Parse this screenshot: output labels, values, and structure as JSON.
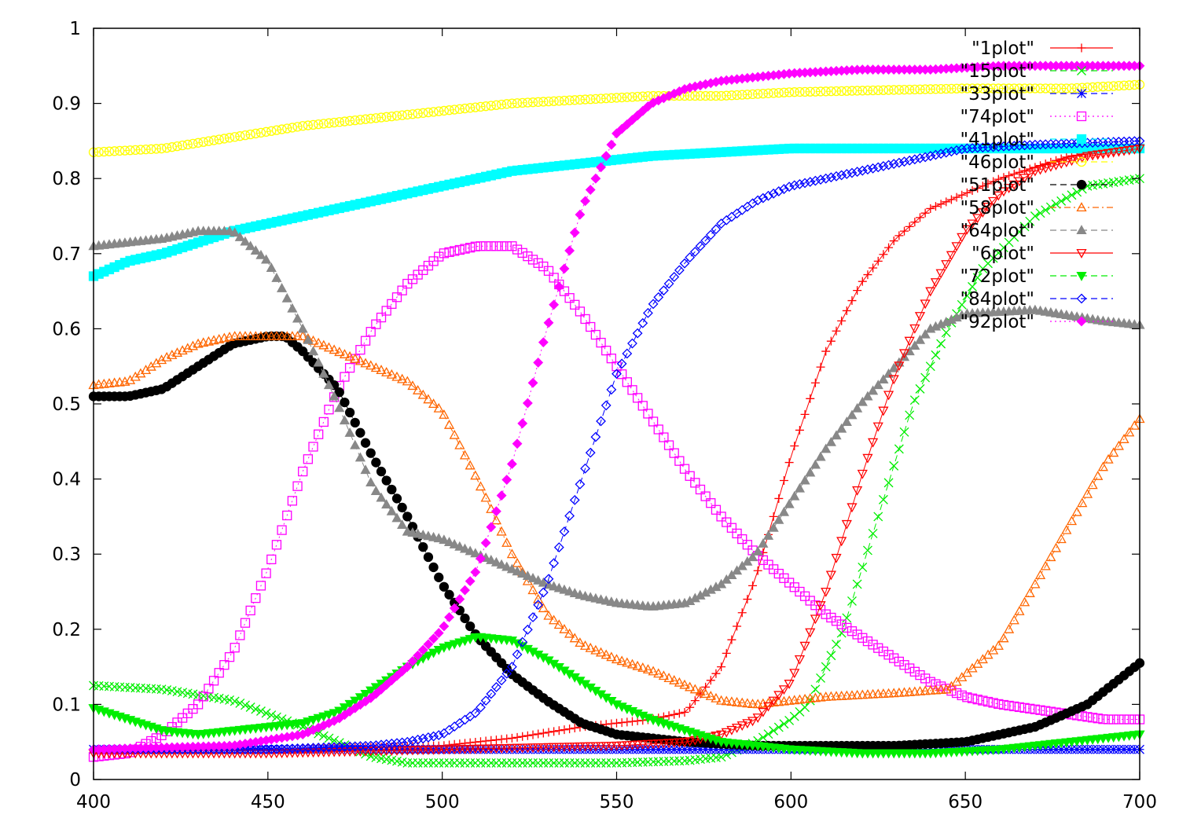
{
  "chart_data": {
    "type": "line",
    "title": "",
    "xlabel": "",
    "ylabel": "",
    "xlim": [
      400,
      700
    ],
    "ylim": [
      0,
      1
    ],
    "x_ticks": [
      400,
      450,
      500,
      550,
      600,
      650,
      700
    ],
    "x_tick_labels": [
      "400",
      "450",
      "500",
      "550",
      "600",
      "650",
      "700"
    ],
    "y_ticks": [
      0,
      0.1,
      0.2,
      0.3,
      0.4,
      0.5,
      0.6,
      0.7,
      0.8,
      0.9,
      1
    ],
    "y_tick_labels": [
      "0",
      "0.1",
      "0.2",
      "0.3",
      "0.4",
      "0.5",
      "0.6",
      "0.7",
      "0.8",
      "0.9",
      "1"
    ],
    "grid": false,
    "legend_position": "top-right",
    "x_step": 1.5,
    "series": [
      {
        "name": "\"1plot\"",
        "color": "#ff0000",
        "marker": "plus",
        "dash": "solid",
        "points": [
          [
            400,
            0.04
          ],
          [
            450,
            0.04
          ],
          [
            500,
            0.045
          ],
          [
            520,
            0.055
          ],
          [
            540,
            0.07
          ],
          [
            560,
            0.08
          ],
          [
            570,
            0.09
          ],
          [
            580,
            0.15
          ],
          [
            590,
            0.27
          ],
          [
            600,
            0.43
          ],
          [
            610,
            0.57
          ],
          [
            620,
            0.66
          ],
          [
            630,
            0.72
          ],
          [
            640,
            0.76
          ],
          [
            660,
            0.8
          ],
          [
            680,
            0.83
          ],
          [
            700,
            0.84
          ]
        ]
      },
      {
        "name": "\"15plot\"",
        "color": "#00ee00",
        "marker": "x",
        "dash": "dash",
        "points": [
          [
            400,
            0.125
          ],
          [
            420,
            0.12
          ],
          [
            440,
            0.105
          ],
          [
            460,
            0.07
          ],
          [
            470,
            0.05
          ],
          [
            480,
            0.03
          ],
          [
            490,
            0.022
          ],
          [
            550,
            0.022
          ],
          [
            570,
            0.025
          ],
          [
            580,
            0.03
          ],
          [
            590,
            0.05
          ],
          [
            600,
            0.08
          ],
          [
            605,
            0.1
          ],
          [
            615,
            0.2
          ],
          [
            625,
            0.35
          ],
          [
            635,
            0.5
          ],
          [
            645,
            0.6
          ],
          [
            655,
            0.68
          ],
          [
            670,
            0.75
          ],
          [
            685,
            0.79
          ],
          [
            700,
            0.8
          ]
        ]
      },
      {
        "name": "\"33plot\"",
        "color": "#0000ff",
        "marker": "star",
        "dash": "dash",
        "points": [
          [
            400,
            0.04
          ],
          [
            700,
            0.04
          ]
        ]
      },
      {
        "name": "\"74plot\"",
        "color": "#ff00ff",
        "marker": "square",
        "dash": "dot",
        "points": [
          [
            400,
            0.03
          ],
          [
            410,
            0.035
          ],
          [
            420,
            0.06
          ],
          [
            430,
            0.1
          ],
          [
            440,
            0.17
          ],
          [
            450,
            0.28
          ],
          [
            460,
            0.41
          ],
          [
            470,
            0.52
          ],
          [
            480,
            0.6
          ],
          [
            490,
            0.66
          ],
          [
            500,
            0.7
          ],
          [
            510,
            0.71
          ],
          [
            520,
            0.71
          ],
          [
            530,
            0.68
          ],
          [
            540,
            0.62
          ],
          [
            550,
            0.55
          ],
          [
            560,
            0.48
          ],
          [
            570,
            0.41
          ],
          [
            580,
            0.35
          ],
          [
            590,
            0.3
          ],
          [
            600,
            0.26
          ],
          [
            610,
            0.22
          ],
          [
            620,
            0.19
          ],
          [
            630,
            0.16
          ],
          [
            640,
            0.13
          ],
          [
            650,
            0.11
          ],
          [
            660,
            0.1
          ],
          [
            675,
            0.09
          ],
          [
            690,
            0.08
          ],
          [
            700,
            0.08
          ]
        ]
      },
      {
        "name": "\"41plot\"",
        "color": "#00ffff",
        "marker": "filled-square",
        "dash": "dash",
        "points": [
          [
            400,
            0.67
          ],
          [
            410,
            0.69
          ],
          [
            420,
            0.7
          ],
          [
            440,
            0.73
          ],
          [
            460,
            0.75
          ],
          [
            480,
            0.77
          ],
          [
            500,
            0.79
          ],
          [
            520,
            0.81
          ],
          [
            540,
            0.82
          ],
          [
            560,
            0.83
          ],
          [
            580,
            0.835
          ],
          [
            600,
            0.84
          ],
          [
            650,
            0.84
          ],
          [
            700,
            0.84
          ]
        ]
      },
      {
        "name": "\"46plot\"",
        "color": "#ffff00",
        "marker": "circle",
        "dash": "dash",
        "points": [
          [
            400,
            0.835
          ],
          [
            420,
            0.84
          ],
          [
            440,
            0.855
          ],
          [
            460,
            0.87
          ],
          [
            480,
            0.88
          ],
          [
            500,
            0.89
          ],
          [
            520,
            0.9
          ],
          [
            540,
            0.905
          ],
          [
            560,
            0.91
          ],
          [
            580,
            0.91
          ],
          [
            600,
            0.915
          ],
          [
            620,
            0.917
          ],
          [
            650,
            0.92
          ],
          [
            680,
            0.92
          ],
          [
            700,
            0.925
          ]
        ]
      },
      {
        "name": "\"51plot\"",
        "color": "#000000",
        "marker": "filled-circle",
        "dash": "dash",
        "points": [
          [
            400,
            0.51
          ],
          [
            410,
            0.51
          ],
          [
            420,
            0.52
          ],
          [
            430,
            0.55
          ],
          [
            440,
            0.58
          ],
          [
            450,
            0.59
          ],
          [
            455,
            0.59
          ],
          [
            460,
            0.57
          ],
          [
            470,
            0.52
          ],
          [
            480,
            0.43
          ],
          [
            490,
            0.35
          ],
          [
            500,
            0.26
          ],
          [
            510,
            0.19
          ],
          [
            520,
            0.14
          ],
          [
            530,
            0.105
          ],
          [
            540,
            0.075
          ],
          [
            550,
            0.06
          ],
          [
            570,
            0.05
          ],
          [
            590,
            0.045
          ],
          [
            610,
            0.045
          ],
          [
            630,
            0.045
          ],
          [
            650,
            0.05
          ],
          [
            670,
            0.07
          ],
          [
            685,
            0.1
          ],
          [
            700,
            0.155
          ]
        ]
      },
      {
        "name": "\"58plot\"",
        "color": "#ff6600",
        "marker": "triangle",
        "dash": "dashdot",
        "points": [
          [
            400,
            0.525
          ],
          [
            410,
            0.53
          ],
          [
            420,
            0.56
          ],
          [
            430,
            0.58
          ],
          [
            440,
            0.59
          ],
          [
            450,
            0.59
          ],
          [
            460,
            0.59
          ],
          [
            470,
            0.57
          ],
          [
            480,
            0.55
          ],
          [
            490,
            0.53
          ],
          [
            500,
            0.49
          ],
          [
            510,
            0.4
          ],
          [
            520,
            0.3
          ],
          [
            530,
            0.22
          ],
          [
            540,
            0.18
          ],
          [
            550,
            0.16
          ],
          [
            560,
            0.145
          ],
          [
            570,
            0.125
          ],
          [
            580,
            0.105
          ],
          [
            590,
            0.1
          ],
          [
            610,
            0.11
          ],
          [
            630,
            0.115
          ],
          [
            645,
            0.12
          ],
          [
            660,
            0.18
          ],
          [
            670,
            0.26
          ],
          [
            680,
            0.34
          ],
          [
            690,
            0.42
          ],
          [
            700,
            0.48
          ]
        ]
      },
      {
        "name": "\"64plot\"",
        "color": "#888888",
        "marker": "filled-triangle",
        "dash": "dash",
        "points": [
          [
            400,
            0.71
          ],
          [
            420,
            0.72
          ],
          [
            430,
            0.73
          ],
          [
            440,
            0.73
          ],
          [
            450,
            0.69
          ],
          [
            460,
            0.6
          ],
          [
            470,
            0.5
          ],
          [
            480,
            0.39
          ],
          [
            490,
            0.33
          ],
          [
            500,
            0.32
          ],
          [
            510,
            0.3
          ],
          [
            520,
            0.28
          ],
          [
            530,
            0.26
          ],
          [
            540,
            0.245
          ],
          [
            550,
            0.235
          ],
          [
            560,
            0.23
          ],
          [
            570,
            0.235
          ],
          [
            580,
            0.26
          ],
          [
            590,
            0.3
          ],
          [
            600,
            0.37
          ],
          [
            610,
            0.44
          ],
          [
            620,
            0.5
          ],
          [
            630,
            0.55
          ],
          [
            640,
            0.6
          ],
          [
            650,
            0.62
          ],
          [
            670,
            0.625
          ],
          [
            690,
            0.61
          ],
          [
            700,
            0.605
          ]
        ]
      },
      {
        "name": "\"6plot\"",
        "color": "#ff0000",
        "marker": "inverted-triangle",
        "dash": "solid",
        "points": [
          [
            400,
            0.035
          ],
          [
            450,
            0.035
          ],
          [
            500,
            0.04
          ],
          [
            550,
            0.045
          ],
          [
            570,
            0.05
          ],
          [
            580,
            0.06
          ],
          [
            590,
            0.08
          ],
          [
            600,
            0.13
          ],
          [
            610,
            0.25
          ],
          [
            620,
            0.4
          ],
          [
            630,
            0.54
          ],
          [
            640,
            0.65
          ],
          [
            650,
            0.73
          ],
          [
            660,
            0.78
          ],
          [
            670,
            0.81
          ],
          [
            685,
            0.83
          ],
          [
            700,
            0.84
          ]
        ]
      },
      {
        "name": "\"72plot\"",
        "color": "#00ee00",
        "marker": "filled-inverted-triangle",
        "dash": "dash",
        "points": [
          [
            400,
            0.095
          ],
          [
            410,
            0.08
          ],
          [
            420,
            0.065
          ],
          [
            430,
            0.06
          ],
          [
            440,
            0.065
          ],
          [
            450,
            0.07
          ],
          [
            460,
            0.075
          ],
          [
            470,
            0.09
          ],
          [
            480,
            0.12
          ],
          [
            490,
            0.15
          ],
          [
            500,
            0.175
          ],
          [
            510,
            0.19
          ],
          [
            520,
            0.185
          ],
          [
            530,
            0.16
          ],
          [
            540,
            0.13
          ],
          [
            550,
            0.1
          ],
          [
            560,
            0.08
          ],
          [
            570,
            0.065
          ],
          [
            580,
            0.05
          ],
          [
            590,
            0.045
          ],
          [
            600,
            0.04
          ],
          [
            620,
            0.035
          ],
          [
            640,
            0.035
          ],
          [
            660,
            0.04
          ],
          [
            680,
            0.05
          ],
          [
            700,
            0.06
          ]
        ]
      },
      {
        "name": "\"84plot\"",
        "color": "#0000ff",
        "marker": "diamond",
        "dash": "dash",
        "points": [
          [
            400,
            0.04
          ],
          [
            450,
            0.04
          ],
          [
            480,
            0.045
          ],
          [
            490,
            0.05
          ],
          [
            500,
            0.06
          ],
          [
            510,
            0.09
          ],
          [
            520,
            0.15
          ],
          [
            530,
            0.26
          ],
          [
            540,
            0.4
          ],
          [
            550,
            0.54
          ],
          [
            560,
            0.63
          ],
          [
            570,
            0.69
          ],
          [
            580,
            0.74
          ],
          [
            590,
            0.77
          ],
          [
            600,
            0.79
          ],
          [
            610,
            0.8
          ],
          [
            620,
            0.81
          ],
          [
            630,
            0.82
          ],
          [
            650,
            0.84
          ],
          [
            670,
            0.845
          ],
          [
            700,
            0.85
          ]
        ]
      },
      {
        "name": "\"92plot\"",
        "color": "#ff00ff",
        "marker": "filled-diamond",
        "dash": "dot",
        "points": [
          [
            400,
            0.04
          ],
          [
            440,
            0.045
          ],
          [
            460,
            0.06
          ],
          [
            470,
            0.08
          ],
          [
            480,
            0.11
          ],
          [
            490,
            0.15
          ],
          [
            500,
            0.2
          ],
          [
            510,
            0.28
          ],
          [
            520,
            0.42
          ],
          [
            530,
            0.6
          ],
          [
            540,
            0.76
          ],
          [
            550,
            0.86
          ],
          [
            560,
            0.9
          ],
          [
            570,
            0.92
          ],
          [
            580,
            0.93
          ],
          [
            600,
            0.94
          ],
          [
            620,
            0.945
          ],
          [
            640,
            0.945
          ],
          [
            660,
            0.95
          ],
          [
            700,
            0.95
          ]
        ]
      }
    ]
  }
}
